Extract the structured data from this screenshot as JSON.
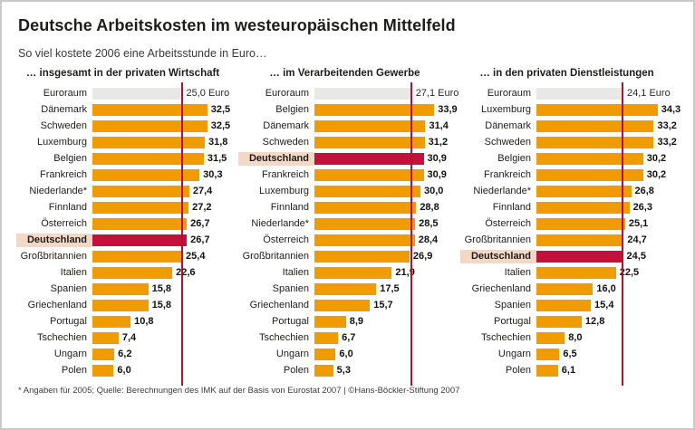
{
  "title": "Deutsche Arbeitskosten im westeuropäischen Mittelfeld",
  "subtitle": "So viel kostete 2006 eine Arbeitsstunde in Euro…",
  "footnote": "* Angaben für 2005; Quelle: Berechnungen des IMK auf der Basis von Eurostat 2007 | ©Hans-Böckler-Stiftung 2007",
  "colors": {
    "bar_orange": "#F09C00",
    "bar_highlight_red": "#C4113B",
    "reference_line_red": "#B80F2E",
    "highlight_label_bg": "#F4D8C6",
    "reference_bar_gray": "#E8E8E5"
  },
  "chart_data": [
    {
      "type": "bar",
      "orientation": "horizontal",
      "title": "… insgesamt in der privaten Wirtschaft",
      "unit": "Euro",
      "reference": {
        "label": "Euroraum",
        "value": 25.0
      },
      "highlight": "Deutschland",
      "categories": [
        "Dänemark",
        "Schweden",
        "Luxemburg",
        "Belgien",
        "Frankreich",
        "Niederlande*",
        "Finnland",
        "Österreich",
        "Deutschland",
        "Großbritannien",
        "Italien",
        "Spanien",
        "Griechenland",
        "Portugal",
        "Tschechien",
        "Ungarn",
        "Polen"
      ],
      "values": [
        32.5,
        32.5,
        31.8,
        31.5,
        30.3,
        27.4,
        27.2,
        26.7,
        26.7,
        25.4,
        22.6,
        15.8,
        15.8,
        10.8,
        7.4,
        6.2,
        6.0
      ],
      "xlim": [
        0,
        36
      ],
      "grid": false,
      "value_labels": true
    },
    {
      "type": "bar",
      "orientation": "horizontal",
      "title": "… im Verarbeitenden Gewerbe",
      "unit": "Euro",
      "reference": {
        "label": "Euroraum",
        "value": 27.1
      },
      "highlight": "Deutschland",
      "categories": [
        "Belgien",
        "Dänemark",
        "Schweden",
        "Deutschland",
        "Frankreich",
        "Luxemburg",
        "Finnland",
        "Niederlande*",
        "Österreich",
        "Großbritannien",
        "Italien",
        "Spanien",
        "Griechenland",
        "Portugal",
        "Tschechien",
        "Ungarn",
        "Polen"
      ],
      "values": [
        33.9,
        31.4,
        31.2,
        30.9,
        30.9,
        30.0,
        28.8,
        28.5,
        28.4,
        26.9,
        21.9,
        17.5,
        15.7,
        8.9,
        6.7,
        6.0,
        5.3
      ],
      "xlim": [
        0,
        36
      ],
      "grid": false,
      "value_labels": true
    },
    {
      "type": "bar",
      "orientation": "horizontal",
      "title": "… in den privaten Dienstleistungen",
      "unit": "Euro",
      "reference": {
        "label": "Euroraum",
        "value": 24.1
      },
      "highlight": "Deutschland",
      "categories": [
        "Luxemburg",
        "Dänemark",
        "Schweden",
        "Belgien",
        "Frankreich",
        "Niederlande*",
        "Finnland",
        "Österreich",
        "Großbritannien",
        "Deutschland",
        "Italien",
        "Griechenland",
        "Spanien",
        "Portugal",
        "Tschechien",
        "Ungarn",
        "Polen"
      ],
      "values": [
        34.3,
        33.2,
        33.2,
        30.2,
        30.2,
        26.8,
        26.3,
        25.1,
        24.7,
        24.5,
        22.5,
        16.0,
        15.4,
        12.8,
        8.0,
        6.5,
        6.1
      ],
      "xlim": [
        0,
        36
      ],
      "grid": false,
      "value_labels": true
    }
  ]
}
